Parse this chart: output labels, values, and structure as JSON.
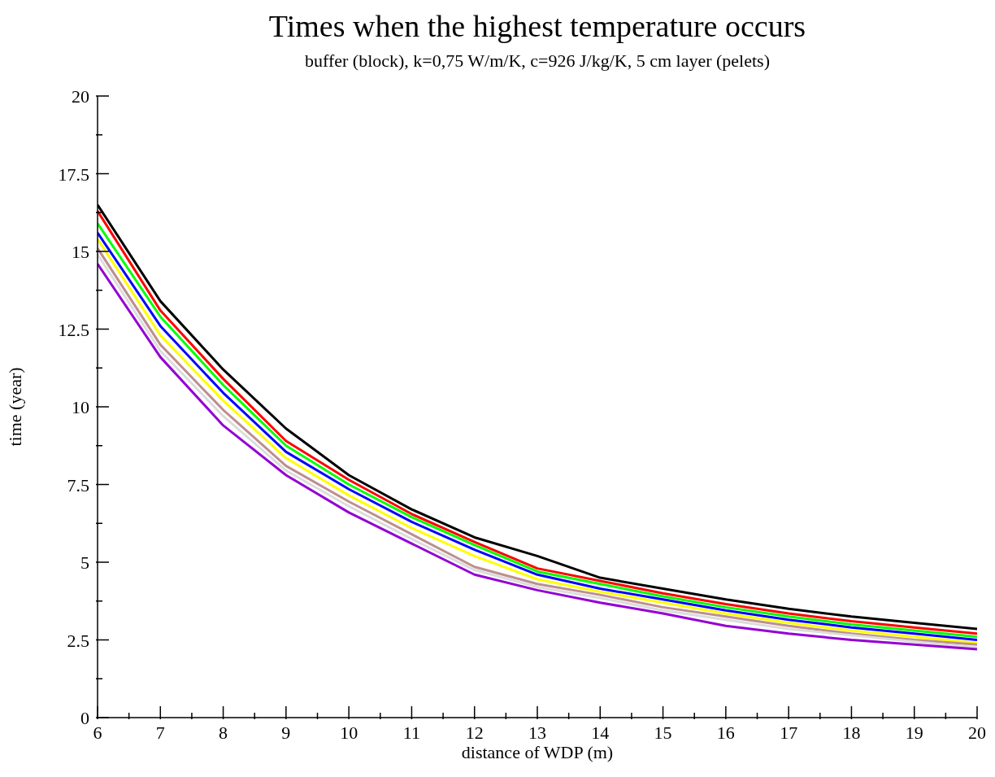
{
  "chart_data": {
    "type": "line",
    "title": "Times when the highest temperature occurs",
    "subtitle": "buffer (block), k=0,75 W/m/K, c=926 J/kg/K, 5 cm layer (pelets)",
    "xlabel": "distance of WDP (m)",
    "ylabel": "time (year)",
    "x": [
      6,
      7,
      8,
      9,
      10,
      11,
      12,
      13,
      14,
      15,
      16,
      17,
      18,
      19,
      20
    ],
    "series": [
      {
        "color": "#000000",
        "values": [
          16.5,
          13.4,
          11.2,
          9.3,
          7.8,
          6.7,
          5.8,
          5.2,
          4.5,
          4.15,
          3.8,
          3.5,
          3.25,
          3.05,
          2.85
        ]
      },
      {
        "color": "#ff0000",
        "values": [
          16.3,
          13.1,
          10.9,
          8.9,
          7.65,
          6.55,
          5.65,
          4.8,
          4.4,
          4.0,
          3.65,
          3.35,
          3.1,
          2.9,
          2.7
        ]
      },
      {
        "color": "#00ff00",
        "values": [
          15.9,
          12.9,
          10.7,
          8.75,
          7.5,
          6.45,
          5.55,
          4.7,
          4.3,
          3.9,
          3.55,
          3.25,
          3.0,
          2.8,
          2.6
        ]
      },
      {
        "color": "#0000ff",
        "values": [
          15.6,
          12.6,
          10.45,
          8.55,
          7.35,
          6.3,
          5.4,
          4.6,
          4.15,
          3.8,
          3.45,
          3.15,
          2.9,
          2.7,
          2.5
        ]
      },
      {
        "color": "#ffff00",
        "values": [
          15.4,
          12.3,
          10.2,
          8.35,
          7.15,
          6.1,
          5.2,
          4.45,
          4.05,
          3.7,
          3.35,
          3.05,
          2.8,
          2.6,
          2.4
        ]
      },
      {
        "color": "#bc8f8f",
        "values": [
          15.1,
          12.0,
          9.9,
          8.1,
          6.95,
          5.9,
          4.85,
          4.3,
          3.95,
          3.55,
          3.25,
          2.95,
          2.7,
          2.5,
          2.35
        ]
      },
      {
        "color": "#dcdcdc",
        "values": [
          14.9,
          11.8,
          9.7,
          7.95,
          6.8,
          5.75,
          4.75,
          4.2,
          3.85,
          3.45,
          3.15,
          2.85,
          2.65,
          2.45,
          2.25
        ]
      },
      {
        "color": "#9400d3",
        "values": [
          14.6,
          11.6,
          9.4,
          7.8,
          6.6,
          5.6,
          4.6,
          4.1,
          3.7,
          3.35,
          2.95,
          2.7,
          2.5,
          2.35,
          2.2
        ]
      }
    ],
    "xlim": [
      6,
      20
    ],
    "xticks": [
      6,
      {
        "value": 6.5,
        "label": null
      },
      7,
      {
        "value": 7.5,
        "label": null
      },
      8,
      {
        "value": 8.5,
        "label": null
      },
      9,
      {
        "value": 9.5,
        "label": null
      },
      10,
      {
        "value": 10.5,
        "label": null
      },
      11,
      {
        "value": 11.5,
        "label": null
      },
      12,
      {
        "value": 12.5,
        "label": null
      },
      13,
      {
        "value": 13.5,
        "label": null
      },
      14,
      {
        "value": 14.5,
        "label": null
      },
      15,
      {
        "value": 15.5,
        "label": null
      },
      16,
      {
        "value": 16.5,
        "label": null
      },
      17,
      {
        "value": 17.5,
        "label": null
      },
      18,
      {
        "value": 18.5,
        "label": null
      },
      19,
      {
        "value": 19.5,
        "label": null
      },
      20
    ],
    "ylim": [
      0,
      20
    ],
    "yticks": [
      0,
      {
        "value": 1.25,
        "label": null
      },
      2.5,
      {
        "value": 3.75,
        "label": null
      },
      5,
      {
        "value": 6.25,
        "label": null
      },
      7.5,
      {
        "value": 8.75,
        "label": null
      },
      10,
      {
        "value": 11.25,
        "label": null
      },
      12.5,
      {
        "value": 13.75,
        "label": null
      },
      15,
      {
        "value": 16.25,
        "label": null
      },
      17.5,
      {
        "value": 18.75,
        "label": null
      },
      20
    ],
    "grid": false,
    "legend": false
  }
}
